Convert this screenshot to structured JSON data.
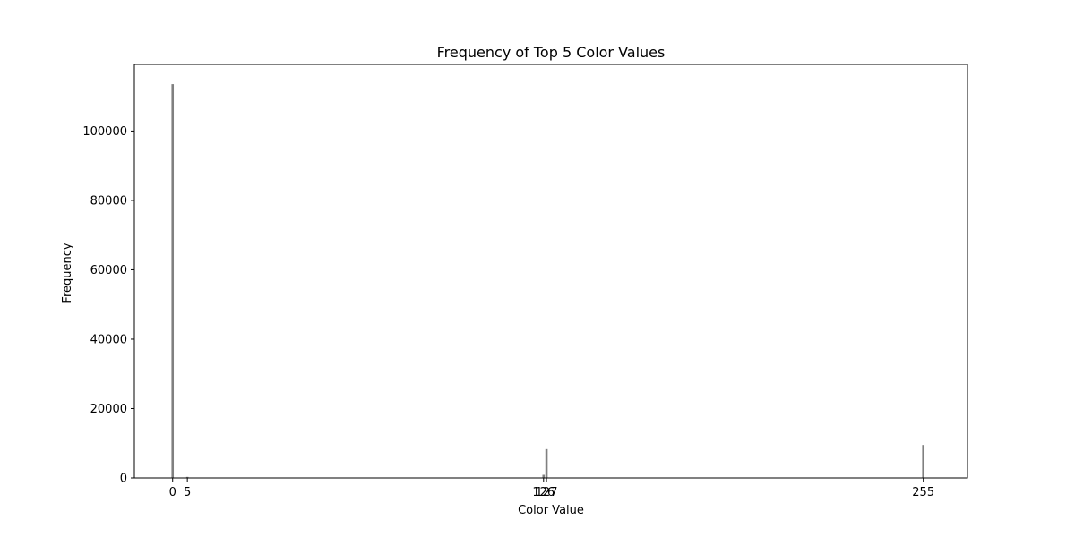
{
  "chart_data": {
    "type": "bar",
    "title": "Frequency of Top 5 Color Values",
    "xlabel": "Color Value",
    "ylabel": "Frequency",
    "x": [
      0,
      5,
      126,
      127,
      255
    ],
    "values": [
      113500,
      300,
      900,
      8300,
      9500
    ],
    "x_ticks": [
      0,
      5,
      126,
      127,
      255
    ],
    "y_ticks": [
      0,
      20000,
      40000,
      60000,
      80000,
      100000
    ],
    "xlim": [
      -13,
      270
    ],
    "ylim": [
      0,
      119200
    ],
    "grid": false,
    "bar_color": "#808080"
  }
}
